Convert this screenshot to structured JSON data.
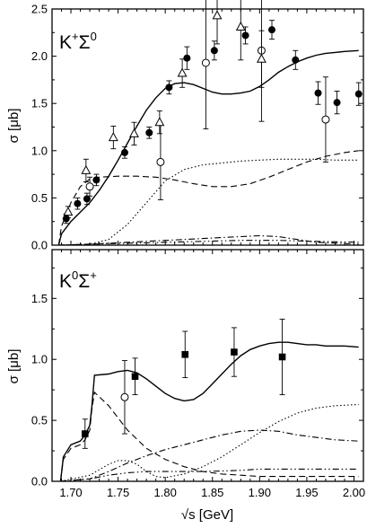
{
  "chart_data": [
    {
      "type": "line",
      "panel_label": {
        "main1": "K",
        "sup1": "+",
        "main2": "Σ",
        "sup2": "0"
      },
      "xlabel": "√s [GeV]",
      "ylabel": "σ [μb]",
      "xlim": [
        1.68,
        2.01
      ],
      "ylim": [
        0,
        2.5
      ],
      "yticks": [
        "0.0",
        "0.5",
        "1.0",
        "1.5",
        "2.0",
        "2.5"
      ],
      "xticks": [],
      "series": [
        {
          "style": "solid",
          "x": [
            1.687,
            1.69,
            1.7,
            1.71,
            1.72,
            1.73,
            1.74,
            1.75,
            1.76,
            1.77,
            1.78,
            1.79,
            1.8,
            1.81,
            1.82,
            1.83,
            1.84,
            1.85,
            1.86,
            1.87,
            1.88,
            1.89,
            1.9,
            1.91,
            1.92,
            1.93,
            1.94,
            1.95,
            1.96,
            1.97,
            1.98,
            1.99,
            2.005
          ],
          "y": [
            0.0,
            0.12,
            0.25,
            0.35,
            0.45,
            0.58,
            0.73,
            0.9,
            1.08,
            1.26,
            1.43,
            1.56,
            1.66,
            1.71,
            1.72,
            1.7,
            1.66,
            1.62,
            1.6,
            1.6,
            1.61,
            1.63,
            1.68,
            1.75,
            1.83,
            1.89,
            1.94,
            1.98,
            2.01,
            2.03,
            2.04,
            2.05,
            2.06
          ]
        },
        {
          "style": "dashed",
          "x": [
            1.687,
            1.69,
            1.7,
            1.71,
            1.72,
            1.73,
            1.75,
            1.77,
            1.79,
            1.81,
            1.83,
            1.85,
            1.87,
            1.89,
            1.91,
            1.93,
            1.95,
            1.97,
            1.99,
            2.005
          ],
          "y": [
            0.0,
            0.2,
            0.45,
            0.62,
            0.7,
            0.72,
            0.73,
            0.73,
            0.72,
            0.69,
            0.65,
            0.62,
            0.62,
            0.65,
            0.72,
            0.8,
            0.88,
            0.94,
            0.98,
            1.0
          ]
        },
        {
          "style": "dotted",
          "x": [
            1.687,
            1.72,
            1.74,
            1.76,
            1.78,
            1.8,
            1.82,
            1.84,
            1.86,
            1.88,
            1.9,
            1.92,
            1.94,
            1.96,
            1.98,
            2.005
          ],
          "y": [
            0.0,
            0.01,
            0.06,
            0.22,
            0.45,
            0.68,
            0.8,
            0.85,
            0.87,
            0.89,
            0.9,
            0.91,
            0.91,
            0.91,
            0.9,
            0.9
          ]
        },
        {
          "style": "dashdot",
          "x": [
            1.687,
            1.72,
            1.76,
            1.8,
            1.84,
            1.88,
            1.9,
            1.92,
            1.94,
            1.96,
            2.005
          ],
          "y": [
            0.0,
            0.01,
            0.03,
            0.05,
            0.07,
            0.09,
            0.1,
            0.09,
            0.06,
            0.03,
            0.01
          ]
        },
        {
          "style": "dashdotdot",
          "x": [
            1.687,
            1.72,
            1.76,
            1.8,
            1.84,
            1.88,
            1.92,
            1.96,
            2.005
          ],
          "y": [
            0.0,
            0.01,
            0.02,
            0.03,
            0.04,
            0.05,
            0.05,
            0.04,
            0.03
          ]
        }
      ],
      "points": [
        {
          "marker": "filled-circle",
          "x": [
            1.695,
            1.707,
            1.717,
            1.727,
            1.757,
            1.783,
            1.804,
            1.823,
            1.852,
            1.885,
            1.913,
            1.938,
            1.962,
            1.982,
            2.005
          ],
          "y": [
            0.28,
            0.44,
            0.49,
            0.69,
            0.98,
            1.19,
            1.67,
            1.98,
            2.06,
            2.22,
            2.28,
            1.96,
            1.61,
            1.51,
            1.6
          ],
          "err": [
            0.05,
            0.06,
            0.06,
            0.06,
            0.06,
            0.06,
            0.07,
            0.12,
            0.1,
            0.09,
            0.1,
            0.1,
            0.12,
            0.12,
            0.12
          ]
        },
        {
          "marker": "open-circle",
          "x": [
            1.72,
            1.795,
            1.843,
            1.902,
            1.97
          ],
          "y": [
            0.62,
            0.88,
            1.93,
            2.06,
            1.33
          ],
          "err": [
            0.1,
            0.4,
            0.7,
            0.75,
            0.45
          ]
        },
        {
          "marker": "open-triangle",
          "x": [
            1.697,
            1.716,
            1.745,
            1.767,
            1.794,
            1.818,
            1.855,
            1.88,
            1.902
          ],
          "y": [
            0.35,
            0.79,
            1.14,
            1.18,
            1.3,
            1.82,
            2.43,
            2.31,
            1.97
          ],
          "err": [
            0.06,
            0.12,
            0.12,
            0.12,
            0.12,
            0.15,
            0.3,
            0.35,
            0.3
          ]
        }
      ]
    },
    {
      "type": "line",
      "panel_label": {
        "main1": "K",
        "sup1": "0",
        "main2": "Σ",
        "sup2": "+"
      },
      "xlabel": "√s [GeV]",
      "ylabel": "σ [μb]",
      "xlim": [
        1.68,
        2.01
      ],
      "ylim": [
        0,
        1.9
      ],
      "yticks": [
        "0.0",
        "0.5",
        "1.0",
        "1.5"
      ],
      "xticks": [
        "1.70",
        "1.75",
        "1.80",
        "1.85",
        "1.90",
        "1.95",
        "2.00"
      ],
      "series": [
        {
          "style": "solid",
          "x": [
            1.689,
            1.692,
            1.7,
            1.71,
            1.715,
            1.72,
            1.722,
            1.725,
            1.74,
            1.75,
            1.76,
            1.77,
            1.78,
            1.79,
            1.8,
            1.81,
            1.82,
            1.83,
            1.84,
            1.85,
            1.86,
            1.87,
            1.88,
            1.89,
            1.9,
            1.91,
            1.92,
            1.93,
            1.94,
            1.95,
            1.96,
            1.97,
            1.98,
            1.99,
            2.005
          ],
          "y": [
            0.0,
            0.2,
            0.3,
            0.33,
            0.38,
            0.46,
            0.6,
            0.87,
            0.88,
            0.9,
            0.91,
            0.89,
            0.84,
            0.78,
            0.72,
            0.68,
            0.66,
            0.67,
            0.72,
            0.8,
            0.88,
            0.96,
            1.03,
            1.08,
            1.11,
            1.13,
            1.14,
            1.14,
            1.13,
            1.12,
            1.12,
            1.11,
            1.11,
            1.11,
            1.1
          ]
        },
        {
          "style": "dashed",
          "x": [
            1.689,
            1.692,
            1.7,
            1.71,
            1.715,
            1.72,
            1.722,
            1.725,
            1.74,
            1.76,
            1.78,
            1.8,
            1.82,
            1.84,
            1.86,
            1.88,
            1.9,
            1.94,
            2.005
          ],
          "y": [
            0.0,
            0.18,
            0.27,
            0.3,
            0.34,
            0.42,
            0.58,
            0.73,
            0.62,
            0.42,
            0.27,
            0.18,
            0.12,
            0.08,
            0.06,
            0.05,
            0.04,
            0.04,
            0.04
          ]
        },
        {
          "style": "dotted",
          "x": [
            1.689,
            1.72,
            1.74,
            1.75,
            1.76,
            1.77,
            1.78,
            1.79,
            1.8,
            1.82,
            1.84,
            1.86,
            1.88,
            1.9,
            1.92,
            1.94,
            1.96,
            1.98,
            2.005
          ],
          "y": [
            0.0,
            0.05,
            0.14,
            0.17,
            0.17,
            0.14,
            0.08,
            0.04,
            0.03,
            0.06,
            0.12,
            0.2,
            0.3,
            0.4,
            0.49,
            0.56,
            0.6,
            0.62,
            0.63
          ]
        },
        {
          "style": "dashdot",
          "x": [
            1.689,
            1.72,
            1.74,
            1.76,
            1.78,
            1.8,
            1.82,
            1.84,
            1.86,
            1.88,
            1.9,
            1.92,
            1.94,
            1.96,
            1.98,
            2.005
          ],
          "y": [
            0.0,
            0.02,
            0.08,
            0.15,
            0.21,
            0.26,
            0.3,
            0.34,
            0.38,
            0.41,
            0.42,
            0.41,
            0.38,
            0.36,
            0.34,
            0.33
          ]
        },
        {
          "style": "dashdotdot",
          "x": [
            1.689,
            1.72,
            1.74,
            1.76,
            1.78,
            1.8,
            1.84,
            1.88,
            1.9,
            1.92,
            1.94,
            1.96,
            2.005
          ],
          "y": [
            0.0,
            0.02,
            0.05,
            0.07,
            0.08,
            0.08,
            0.08,
            0.09,
            0.1,
            0.1,
            0.1,
            0.1,
            0.1
          ]
        }
      ],
      "points": [
        {
          "marker": "filled-square",
          "x": [
            1.715,
            1.768,
            1.821,
            1.873,
            1.924
          ],
          "y": [
            0.39,
            0.86,
            1.04,
            1.06,
            1.02
          ],
          "err": [
            0.12,
            0.15,
            0.19,
            0.2,
            0.31
          ]
        },
        {
          "marker": "open-circle",
          "x": [
            1.757
          ],
          "y": [
            0.69
          ],
          "err": [
            0.3
          ]
        }
      ]
    }
  ]
}
